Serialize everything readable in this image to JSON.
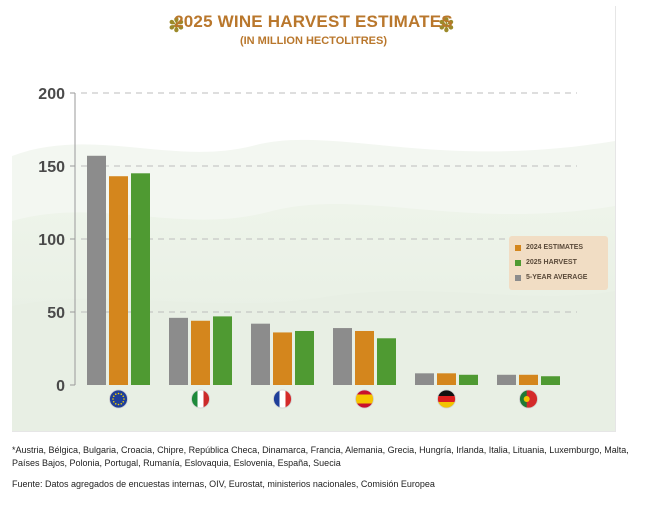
{
  "header": {
    "title": "2025 WINE HARVEST  ESTIMATES",
    "subtitle": "(IN MILLION HECTOLITRES)",
    "ornament": "✽"
  },
  "chart_data": {
    "type": "bar",
    "title": "2025 WINE HARVEST  ESTIMATES",
    "subtitle": "(IN MILLION HECTOLITRES)",
    "categories": [
      "EU",
      "Italy",
      "France",
      "Spain",
      "Germany",
      "Portugal"
    ],
    "series": [
      {
        "name": "5-YEAR AVERAGE",
        "color": "#8c8c8c",
        "values": [
          157,
          46,
          42,
          39,
          8,
          7
        ]
      },
      {
        "name": "2024 ESTIMATES",
        "color": "#d4861d",
        "values": [
          143,
          44,
          36,
          37,
          8,
          7
        ]
      },
      {
        "name": "2025 HARVEST",
        "color": "#4f9a32",
        "values": [
          145,
          47,
          37,
          32,
          7,
          6
        ]
      }
    ],
    "legend_order": [
      "2024 ESTIMATES",
      "2025 HARVEST",
      "5-YEAR AVERAGE"
    ],
    "yticks": [
      "0",
      "50",
      "100",
      "150",
      "200"
    ],
    "ylim": [
      0,
      200
    ],
    "xlabel": "",
    "ylabel": "",
    "grid": true,
    "legend_position": "right",
    "category_icons": [
      "eu-flag-icon",
      "italy-flag-icon",
      "france-flag-icon",
      "spain-flag-icon",
      "germany-flag-icon",
      "portugal-flag-icon"
    ]
  },
  "footnotes": {
    "countries": "*Austria, Bélgica, Bulgaria, Croacia, Chipre, República Checa, Dinamarca, Francia, Alemania, Grecia, Hungría, Irlanda, Italia, Lituania, Luxemburgo, Malta, Países Bajos, Polonia, Portugal, Rumanía, Eslovaquia, Eslovenia, España, Suecia",
    "source": "Fuente: Datos agregados de encuestas internas, OIV, Eurostat, ministerios nacionales, Comisión Europea"
  },
  "colors": {
    "title": "#b9772c",
    "legend_bg": "#f1ddc4",
    "grid": "#bdbdbd"
  }
}
